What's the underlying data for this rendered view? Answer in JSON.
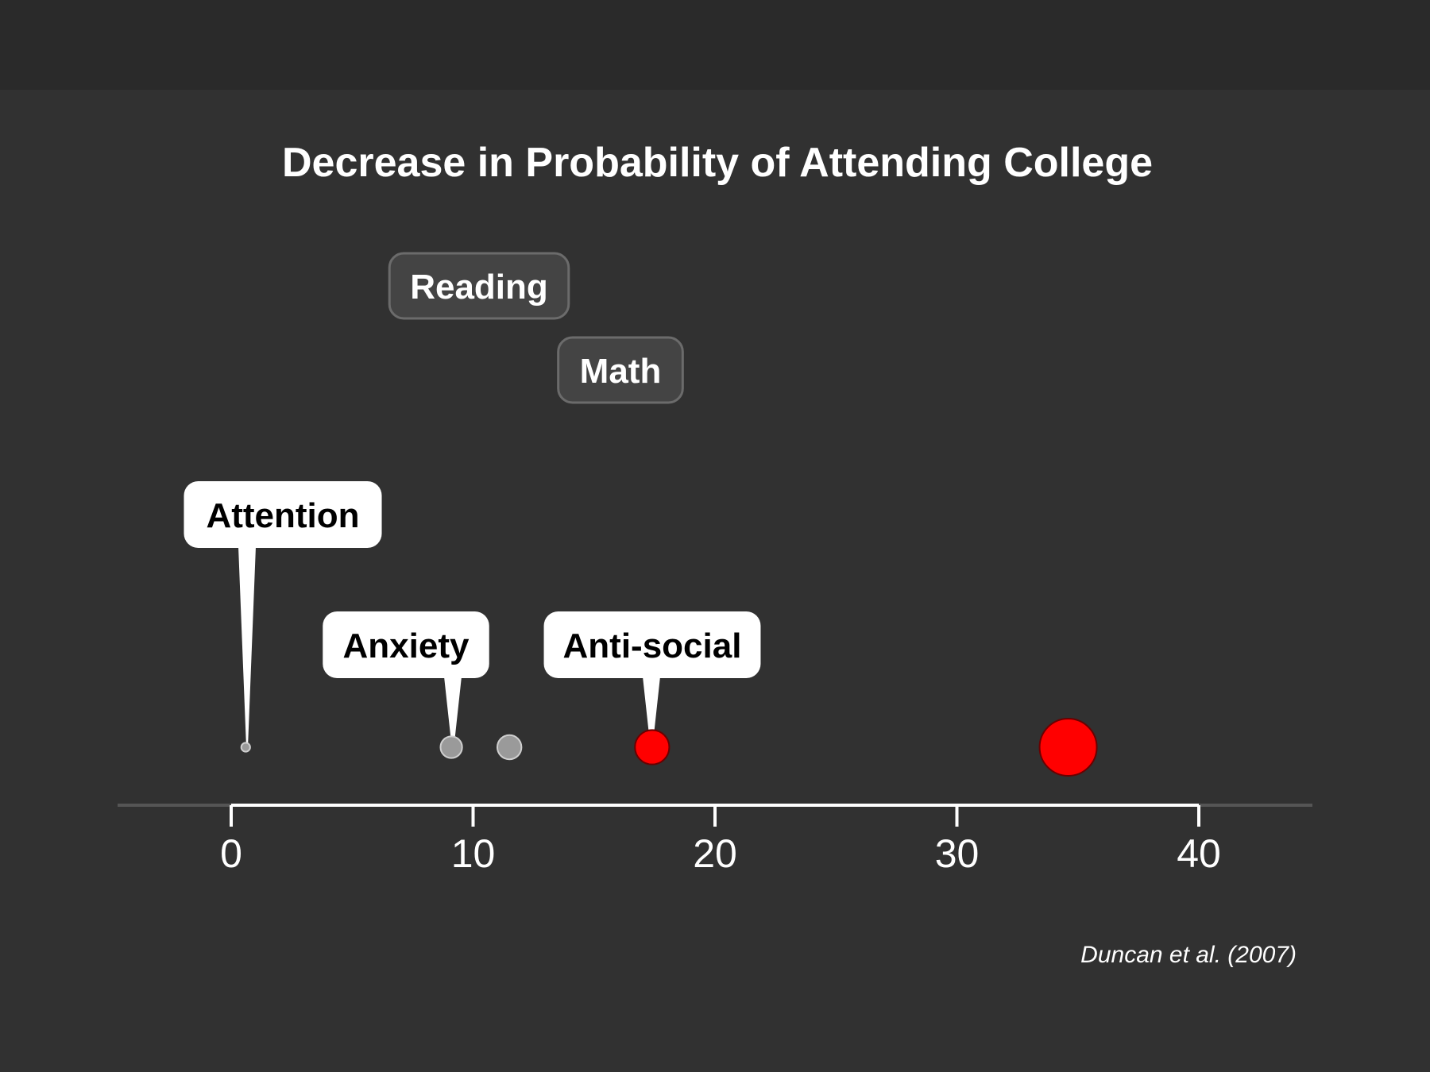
{
  "colors": {
    "background": "#313131",
    "highlight": "#ff0000",
    "muted_point": "#9a9a9a",
    "callout_light": "#ffffff",
    "callout_dark": "#444444"
  },
  "chart_data": {
    "type": "scatter",
    "title": "Decrease in Probability of Attending College",
    "xlabel": "",
    "ylabel": "",
    "xlim": [
      -5,
      45
    ],
    "xticks": [
      "0",
      "10",
      "20",
      "30",
      "40"
    ],
    "source": "Duncan et al. (2007)",
    "points": [
      {
        "label": "Attention",
        "x": 0.6,
        "size": 1,
        "highlight": false,
        "callout": "light"
      },
      {
        "label": "Anxiety",
        "x": 9.1,
        "size": 6,
        "highlight": false,
        "callout": "light"
      },
      {
        "label": "Reading",
        "x": 11.5,
        "size": 7,
        "highlight": false,
        "callout": "dark"
      },
      {
        "label": "Anti-social",
        "x": 17.4,
        "size": 11,
        "highlight": true,
        "callout": "light"
      },
      {
        "label": "Math",
        "x": 34.6,
        "size": 20,
        "highlight": true,
        "callout": "dark"
      }
    ]
  }
}
